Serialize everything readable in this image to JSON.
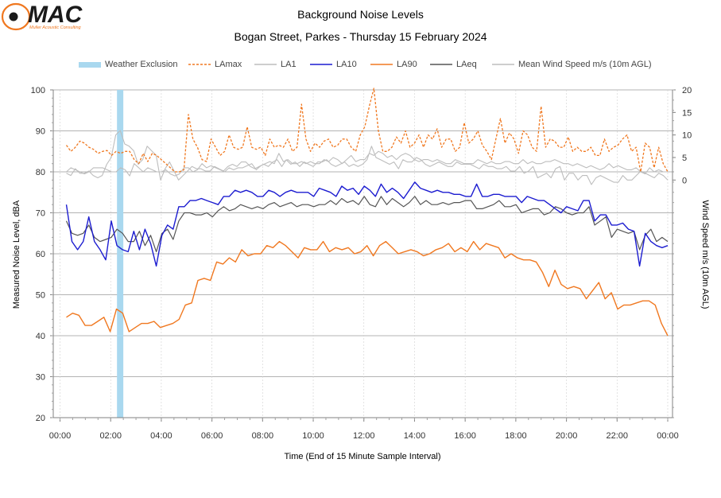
{
  "logo": {
    "name": "MAC",
    "subtitle": "Muller Acoustic Consulting"
  },
  "chart_data": {
    "type": "line",
    "title": "Background Noise Levels",
    "subtitle": "Bogan Street, Parkes - Thursday 15 February 2024",
    "xlabel": "Time (End of 15 Minute Sample Interval)",
    "ylabel": "Measured Noise Level, dBA",
    "y2label": "Wind Speed m/s (10m AGL)",
    "ylim": [
      20,
      100
    ],
    "yticks": [
      20,
      30,
      40,
      50,
      60,
      70,
      80,
      90,
      100
    ],
    "y2ticks": [
      0,
      5,
      10,
      15,
      20
    ],
    "y2_mapping": "wind 0 m/s at 78 dBA; 20 m/s at 100 dBA",
    "xlim": [
      0,
      24
    ],
    "xticks": [
      "00:00",
      "02:00",
      "04:00",
      "06:00",
      "08:00",
      "10:00",
      "12:00",
      "14:00",
      "16:00",
      "18:00",
      "20:00",
      "22:00",
      "00:00"
    ],
    "grid": true,
    "legend_position": "top",
    "colors": {
      "LAmax": "#f07820",
      "LA1": "#bdbdbd",
      "LA10": "#1c1cd0",
      "LA90": "#f07820",
      "LAeq": "#555555",
      "Wind": "#bdbdbd",
      "Exclusion": "#a9d8ef"
    },
    "legend": [
      "Weather Exclusion",
      "LAmax",
      "LA1",
      "LA10",
      "LA90",
      "LAeq",
      "Mean Wind Speed m/s (10m AGL)"
    ],
    "weather_exclusion": [
      {
        "start_hour": 2.25,
        "end_hour": 2.5
      }
    ],
    "x_start_hour": 0.25,
    "x_step_hours": 0.25,
    "series": [
      {
        "name": "LAmax",
        "values": [
          86.5,
          85.0,
          86.0,
          87.5,
          87.0,
          86.0,
          85.5,
          84.5,
          85.0,
          85.2,
          84.0,
          85.0,
          84.5,
          85.0,
          85.0,
          83.0,
          82.0,
          84.5,
          82.5,
          84.5,
          84.0,
          83.0,
          82.0,
          81.0,
          80.0,
          80.0,
          80.5,
          94.0,
          88.0,
          86.0,
          83.0,
          82.5,
          88.0,
          86.0,
          84.0,
          85.0,
          89.0,
          86.0,
          85.5,
          86.0,
          91.0,
          86.0,
          85.5,
          86.0,
          84.0,
          88.0,
          86.0,
          86.5,
          86.0,
          88.0,
          85.0,
          86.0,
          96.5,
          88.0,
          85.0,
          87.0,
          86.0,
          87.5,
          88.0,
          86.0,
          86.5,
          88.0,
          88.0,
          86.0,
          85.0,
          89.0,
          91.0,
          96.0,
          100.5,
          90.0,
          85.0,
          85.0,
          86.0,
          88.5,
          87.0,
          90.0,
          86.0,
          87.0,
          89.0,
          86.0,
          89.0,
          88.0,
          90.5,
          86.0,
          88.0,
          88.0,
          85.0,
          86.0,
          92.0,
          87.0,
          88.0,
          90.0,
          86.5,
          85.0,
          83.0,
          88.0,
          93.0,
          87.0,
          89.5,
          88.0,
          84.5,
          90.0,
          89.0,
          86.0,
          85.0,
          96.0,
          86.0,
          88.0,
          87.5,
          86.0,
          86.0,
          88.5,
          85.0,
          86.0,
          85.0,
          85.0,
          86.0,
          84.0,
          84.0,
          88.0,
          85.0,
          86.0,
          86.5,
          88.0,
          89.0,
          85.0,
          86.0,
          80.0,
          87.0,
          86.0,
          81.0,
          86.0,
          82.0,
          80.0
        ]
      },
      {
        "name": "LA1",
        "values": [
          80.0,
          81.0,
          80.5,
          80.0,
          79.5,
          80.0,
          81.0,
          81.0,
          81.0,
          80.5,
          80.0,
          80.0,
          81.0,
          80.5,
          79.0,
          82.0,
          81.0,
          80.0,
          81.0,
          80.5,
          80.0,
          80.0,
          80.5,
          79.5,
          79.0,
          79.5,
          81.0,
          81.0,
          80.0,
          80.5,
          82.0,
          81.0,
          81.5,
          81.0,
          80.5,
          80.0,
          81.0,
          80.5,
          81.0,
          81.0,
          81.5,
          82.0,
          80.5,
          81.5,
          82.0,
          82.5,
          82.0,
          84.5,
          82.5,
          83.0,
          82.0,
          82.0,
          82.5,
          82.0,
          82.5,
          82.0,
          82.0,
          83.0,
          82.5,
          83.5,
          83.0,
          82.0,
          83.0,
          84.0,
          82.5,
          83.0,
          83.0,
          84.5,
          84.0,
          85.0,
          84.5,
          83.5,
          84.0,
          83.0,
          84.0,
          84.5,
          84.0,
          83.0,
          82.5,
          83.0,
          83.0,
          82.5,
          83.0,
          82.5,
          82.0,
          82.0,
          83.0,
          82.5,
          82.0,
          82.0,
          82.0,
          83.0,
          82.5,
          82.0,
          82.5,
          82.0,
          82.0,
          82.5,
          82.5,
          82.0,
          82.0,
          83.0,
          82.0,
          82.5,
          82.0,
          82.0,
          82.5,
          82.5,
          83.0,
          82.5,
          82.0,
          82.0,
          81.5,
          82.0,
          81.5,
          81.0,
          81.5,
          81.0,
          80.5,
          81.0,
          82.0,
          81.0,
          81.5,
          81.0,
          80.5,
          80.5,
          81.0,
          80.0,
          79.5,
          81.0,
          80.0,
          80.5,
          80.0,
          80.0
        ]
      },
      {
        "name": "LA10",
        "values": [
          72.0,
          63.0,
          61.0,
          63.0,
          69.0,
          63.0,
          61.0,
          58.5,
          68.0,
          62.0,
          61.0,
          60.5,
          65.5,
          61.0,
          66.0,
          62.5,
          57.0,
          64.5,
          67.0,
          66.0,
          71.5,
          71.5,
          73.0,
          73.0,
          73.5,
          73.0,
          72.5,
          72.0,
          74.0,
          74.0,
          75.5,
          75.0,
          75.5,
          75.0,
          74.0,
          74.0,
          75.5,
          75.0,
          74.0,
          75.0,
          75.5,
          75.0,
          75.0,
          75.0,
          74.0,
          76.0,
          75.5,
          75.0,
          74.0,
          76.5,
          75.5,
          76.0,
          74.5,
          76.5,
          75.5,
          74.0,
          77.0,
          75.0,
          76.0,
          75.0,
          73.5,
          75.5,
          77.5,
          76.0,
          75.5,
          75.0,
          75.5,
          75.0,
          75.0,
          74.5,
          74.5,
          74.0,
          74.0,
          77.0,
          74.0,
          74.0,
          74.5,
          74.5,
          74.0,
          74.0,
          74.0,
          72.5,
          74.0,
          73.5,
          73.0,
          73.0,
          72.0,
          71.0,
          70.0,
          71.5,
          71.0,
          70.5,
          73.0,
          73.0,
          68.0,
          69.5,
          69.5,
          67.0,
          67.0,
          67.5,
          66.0,
          65.5,
          57.0,
          65.0,
          63.0,
          62.0,
          61.5,
          62.0
        ]
      },
      {
        "name": "LA90",
        "values": [
          44.5,
          45.5,
          45.0,
          42.5,
          42.5,
          43.5,
          44.5,
          41.0,
          46.5,
          45.5,
          41.0,
          42.0,
          43.0,
          43.0,
          43.5,
          42.0,
          42.5,
          43.0,
          44.0,
          47.5,
          48.0,
          53.5,
          54.0,
          53.5,
          58.0,
          57.5,
          59.0,
          58.0,
          61.0,
          59.5,
          60.0,
          60.0,
          62.0,
          61.5,
          63.0,
          62.0,
          60.5,
          59.0,
          61.5,
          61.0,
          61.0,
          63.0,
          60.5,
          61.5,
          61.0,
          61.5,
          60.0,
          60.5,
          62.0,
          59.5,
          62.0,
          63.0,
          61.5,
          60.0,
          60.5,
          61.0,
          60.5,
          59.5,
          60.0,
          61.0,
          61.5,
          62.5,
          60.5,
          61.5,
          60.5,
          63.0,
          61.0,
          62.5,
          62.0,
          61.5,
          59.0,
          60.0,
          59.0,
          58.5,
          58.5,
          58.0,
          55.5,
          52.0,
          56.0,
          52.5,
          51.5,
          52.0,
          51.5,
          49.0,
          51.0,
          53.0,
          49.0,
          50.5,
          46.5,
          47.5,
          47.5,
          48.0,
          48.5,
          48.5,
          47.5,
          43.0,
          40.0
        ]
      },
      {
        "name": "LAeq",
        "values": [
          68.0,
          65.0,
          64.5,
          65.0,
          67.0,
          64.0,
          63.0,
          63.5,
          64.0,
          66.0,
          65.0,
          63.0,
          63.0,
          65.5,
          62.0,
          64.5,
          60.5,
          65.0,
          66.0,
          63.5,
          68.0,
          70.0,
          70.0,
          69.5,
          69.5,
          70.0,
          69.0,
          70.5,
          71.5,
          70.5,
          71.0,
          72.0,
          71.5,
          71.0,
          71.5,
          71.0,
          72.0,
          72.5,
          71.5,
          72.0,
          72.5,
          71.5,
          72.0,
          72.0,
          71.5,
          72.0,
          72.0,
          73.0,
          72.0,
          73.5,
          72.5,
          73.0,
          72.0,
          74.0,
          72.0,
          71.5,
          74.0,
          72.0,
          73.5,
          72.5,
          71.5,
          72.5,
          74.0,
          72.0,
          73.0,
          72.0,
          72.0,
          72.5,
          72.0,
          72.5,
          72.5,
          73.0,
          73.0,
          71.0,
          71.0,
          71.5,
          72.0,
          73.0,
          71.5,
          71.5,
          72.0,
          70.0,
          70.5,
          71.0,
          71.0,
          69.5,
          70.0,
          71.5,
          71.0,
          70.0,
          69.5,
          70.0,
          70.0,
          71.5,
          67.0,
          68.0,
          69.0,
          64.0,
          66.0,
          65.5,
          65.0,
          65.5,
          61.0,
          64.5,
          66.0,
          63.0,
          64.0,
          63.0
        ]
      },
      {
        "name": "Mean Wind Speed m/s (10m AGL)",
        "values": [
          1.5,
          1.0,
          2.5,
          1.5,
          1.5,
          2.0,
          1.0,
          0.5,
          1.0,
          3.5,
          5.0,
          10.0,
          11.0,
          8.0,
          7.5,
          6.5,
          3.5,
          4.5,
          7.5,
          6.5,
          5.5,
          0.0,
          2.5,
          4.0,
          2.0,
          0.0,
          1.0,
          2.0,
          3.0,
          2.5,
          2.5,
          2.0,
          2.0,
          3.0,
          2.5,
          2.0,
          3.0,
          3.5,
          3.0,
          4.0,
          4.0,
          3.0,
          2.5,
          3.0,
          3.5,
          3.0,
          4.0,
          4.5,
          3.0,
          4.5,
          3.5,
          4.0,
          3.0,
          4.0,
          3.5,
          3.0,
          4.0,
          4.0,
          4.5,
          3.5,
          3.0,
          3.5,
          4.0,
          3.0,
          3.5,
          3.0,
          3.5,
          4.5,
          7.5,
          5.0,
          4.5,
          4.0,
          3.5,
          4.0,
          2.5,
          4.5,
          4.0,
          4.0,
          5.0,
          4.5,
          3.5,
          3.0,
          3.5,
          4.0,
          3.5,
          3.0,
          3.0,
          4.0,
          3.5,
          3.5,
          3.5,
          3.0,
          2.5,
          3.5,
          3.0,
          3.0,
          2.5,
          2.5,
          3.0,
          2.0,
          2.0,
          3.0,
          1.5,
          2.0,
          3.0,
          0.5,
          1.0,
          1.5,
          0.5,
          2.5,
          3.0,
          0.0,
          1.5,
          1.5,
          0.0,
          1.0,
          1.0,
          -1.0,
          0.5,
          1.0,
          0.5,
          0.0,
          -0.5,
          -0.5,
          1.0,
          0.0,
          0.0,
          1.0,
          2.0,
          1.5,
          1.0,
          0.5,
          1.5,
          1.0,
          0.0
        ]
      }
    ]
  }
}
